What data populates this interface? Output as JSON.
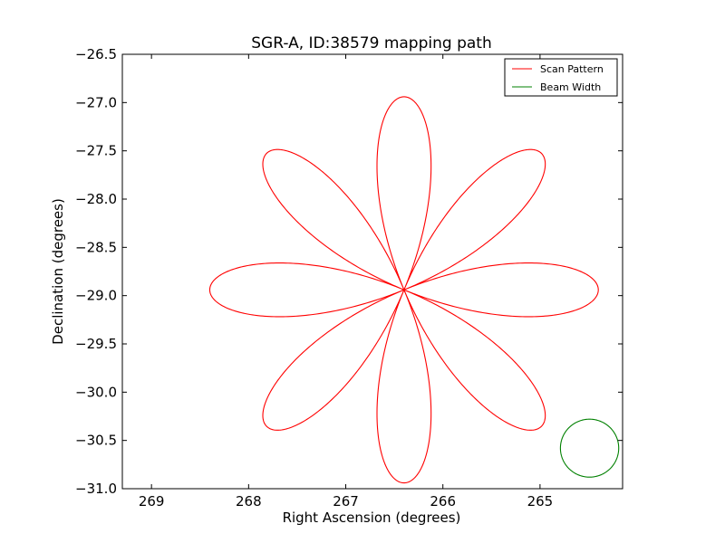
{
  "chart_data": {
    "type": "line",
    "title": "SGR-A, ID:38579 mapping path",
    "xlabel": "Right Ascension (degrees)",
    "ylabel": "Declination (degrees)",
    "xlim": [
      269.3,
      264.15
    ],
    "ylim": [
      -31.0,
      -26.5
    ],
    "x_axis_inverted": true,
    "x_ticks": [
      269,
      268,
      267,
      266,
      265
    ],
    "x_tick_labels": [
      "269",
      "268",
      "267",
      "266",
      "265"
    ],
    "y_ticks": [
      -26.5,
      -27.0,
      -27.5,
      -28.0,
      -28.5,
      -29.0,
      -29.5,
      -30.0,
      -30.5,
      -31.0
    ],
    "y_tick_labels": [
      "−26.5",
      "−27.0",
      "−27.5",
      "−28.0",
      "−28.5",
      "−29.0",
      "−29.5",
      "−30.0",
      "−30.5",
      "−31.0"
    ],
    "grid": false,
    "legend_position": "top-right",
    "legend": [
      "Scan Pattern",
      "Beam Width"
    ],
    "series": [
      {
        "name": "Scan Pattern",
        "color": "#ff0000",
        "shape": "rose-8-petal",
        "center": [
          266.4,
          -28.94
        ],
        "petal_length_deg": 2.0,
        "petals": 8
      },
      {
        "name": "Beam Width",
        "color": "#008000",
        "shape": "circle",
        "center": [
          264.49,
          -30.58
        ],
        "radius_deg": 0.3
      }
    ]
  }
}
